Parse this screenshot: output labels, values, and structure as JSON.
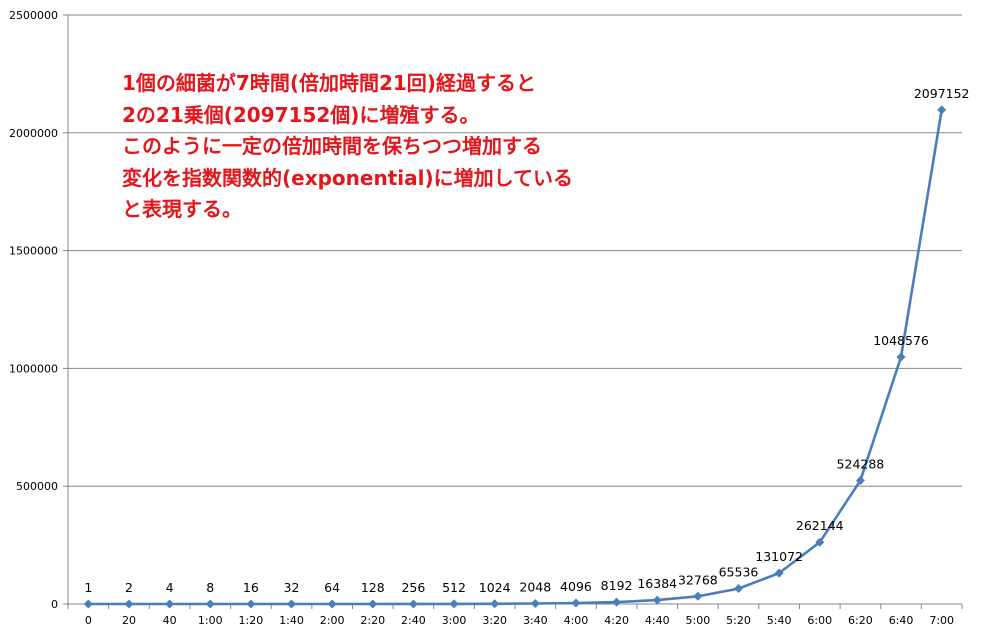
{
  "chart_data": {
    "type": "line",
    "categories": [
      "0",
      "20",
      "40",
      "1:00",
      "1:20",
      "1:40",
      "2:00",
      "2:20",
      "2:40",
      "3:00",
      "3:20",
      "3:40",
      "4:00",
      "4:20",
      "4:40",
      "5:00",
      "5:20",
      "5:40",
      "6:00",
      "6:20",
      "6:40",
      "7:00"
    ],
    "series": [
      {
        "values": [
          1,
          2,
          4,
          8,
          16,
          32,
          64,
          128,
          256,
          512,
          1024,
          2048,
          4096,
          8192,
          16384,
          32768,
          65536,
          131072,
          262144,
          524288,
          1048576,
          2097152
        ]
      }
    ],
    "data_labels": [
      "1",
      "2",
      "4",
      "8",
      "16",
      "32",
      "64",
      "128",
      "256",
      "512",
      "1024",
      "2048",
      "4096",
      "8192",
      "16384",
      "32768",
      "65536",
      "131072",
      "262144",
      "524288",
      "1048576",
      "2097152"
    ],
    "y_ticks": [
      "0",
      "500000",
      "1000000",
      "1500000",
      "2000000",
      "2500000"
    ],
    "ylim": [
      0,
      2500000
    ],
    "grid": true,
    "legend": "none",
    "colors": {
      "line": "#4a7ebb",
      "marker": "#4a7ebb",
      "grid": "#868686",
      "annotation": "#e3161b"
    }
  },
  "annotation": {
    "lines": [
      "1個の細菌が7時間(倍加時間21回)経過すると",
      "2の21乗個(2097152個)に増殖する。",
      "このように一定の倍加時間を保ちつつ増加する",
      "変化を指数関数的(exponential)に増加している",
      "と表現する。"
    ]
  }
}
